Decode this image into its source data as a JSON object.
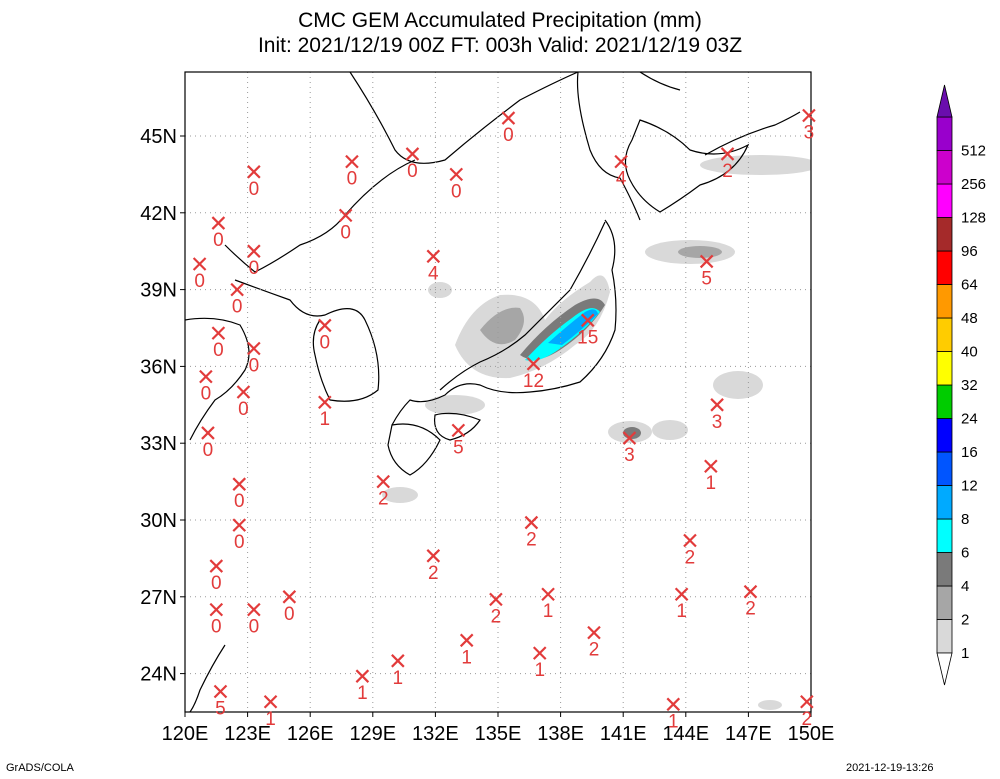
{
  "title": {
    "line1": "CMC GEM Accumulated Precipitation (mm)",
    "line2": "Init: 2021/12/19 00Z  FT: 003h  Valid: 2021/12/19 03Z"
  },
  "footer": {
    "left": "GrADS/COLA",
    "right": "2021-12-19-13:26"
  },
  "map": {
    "lon_range": [
      120,
      150
    ],
    "lat_range": [
      22.5,
      47.5
    ],
    "x_ticks": [
      120,
      123,
      126,
      129,
      132,
      135,
      138,
      141,
      144,
      147,
      150
    ],
    "x_tick_labels": [
      "120E",
      "123E",
      "126E",
      "129E",
      "132E",
      "135E",
      "138E",
      "141E",
      "144E",
      "147E",
      "150E"
    ],
    "y_ticks": [
      24,
      27,
      30,
      33,
      36,
      39,
      42,
      45
    ],
    "y_tick_labels": [
      "24N",
      "27N",
      "30N",
      "33N",
      "36N",
      "39N",
      "42N",
      "45N"
    ],
    "grid": true,
    "marker_color": "#e23b3b"
  },
  "legend": {
    "levels": [
      {
        "label": "1",
        "color": "#d9d9d9"
      },
      {
        "label": "2",
        "color": "#a6a6a6"
      },
      {
        "label": "4",
        "color": "#7a7a7a"
      },
      {
        "label": "6",
        "color": "#00ffff"
      },
      {
        "label": "8",
        "color": "#00aaff"
      },
      {
        "label": "12",
        "color": "#0055ff"
      },
      {
        "label": "16",
        "color": "#0000ff"
      },
      {
        "label": "24",
        "color": "#00cc00"
      },
      {
        "label": "32",
        "color": "#ffff00"
      },
      {
        "label": "40",
        "color": "#ffcc00"
      },
      {
        "label": "48",
        "color": "#ff9900"
      },
      {
        "label": "64",
        "color": "#ff0000"
      },
      {
        "label": "96",
        "color": "#a52a2a"
      },
      {
        "label": "128",
        "color": "#ff00ff"
      },
      {
        "label": "256",
        "color": "#cc00cc"
      },
      {
        "label": "512",
        "color": "#9900cc"
      }
    ],
    "top_arrow_color": "#6a0dad",
    "bottom_arrow_color": "#ffffff"
  },
  "stations": [
    {
      "lon": 135.5,
      "lat": 45.7,
      "value": "0"
    },
    {
      "lon": 128.0,
      "lat": 44.0,
      "value": "0"
    },
    {
      "lon": 130.9,
      "lat": 44.3,
      "value": "0"
    },
    {
      "lon": 133.0,
      "lat": 43.5,
      "value": "0"
    },
    {
      "lon": 123.3,
      "lat": 43.6,
      "value": "0"
    },
    {
      "lon": 127.7,
      "lat": 41.9,
      "value": "0"
    },
    {
      "lon": 121.6,
      "lat": 41.6,
      "value": "0"
    },
    {
      "lon": 123.3,
      "lat": 40.5,
      "value": "0"
    },
    {
      "lon": 120.7,
      "lat": 40.0,
      "value": "0"
    },
    {
      "lon": 122.5,
      "lat": 39.0,
      "value": "0"
    },
    {
      "lon": 121.6,
      "lat": 37.3,
      "value": "0"
    },
    {
      "lon": 123.3,
      "lat": 36.7,
      "value": "0"
    },
    {
      "lon": 121.0,
      "lat": 35.6,
      "value": "0"
    },
    {
      "lon": 122.8,
      "lat": 35.0,
      "value": "0"
    },
    {
      "lon": 121.1,
      "lat": 33.4,
      "value": "0"
    },
    {
      "lon": 122.6,
      "lat": 31.4,
      "value": "0"
    },
    {
      "lon": 122.6,
      "lat": 29.8,
      "value": "0"
    },
    {
      "lon": 121.5,
      "lat": 28.2,
      "value": "0"
    },
    {
      "lon": 121.5,
      "lat": 26.5,
      "value": "0"
    },
    {
      "lon": 123.3,
      "lat": 26.5,
      "value": "0"
    },
    {
      "lon": 125.0,
      "lat": 27.0,
      "value": "0"
    },
    {
      "lon": 126.7,
      "lat": 37.6,
      "value": "0"
    },
    {
      "lon": 126.7,
      "lat": 34.6,
      "value": "1"
    },
    {
      "lon": 131.9,
      "lat": 40.3,
      "value": "4"
    },
    {
      "lon": 140.9,
      "lat": 44.0,
      "value": "4"
    },
    {
      "lon": 146.0,
      "lat": 44.3,
      "value": "2"
    },
    {
      "lon": 149.9,
      "lat": 45.8,
      "value": "3"
    },
    {
      "lon": 145.0,
      "lat": 40.1,
      "value": "5"
    },
    {
      "lon": 139.3,
      "lat": 37.8,
      "value": "15"
    },
    {
      "lon": 136.7,
      "lat": 36.1,
      "value": "12"
    },
    {
      "lon": 133.1,
      "lat": 33.5,
      "value": "5"
    },
    {
      "lon": 141.3,
      "lat": 33.2,
      "value": "3"
    },
    {
      "lon": 145.5,
      "lat": 34.5,
      "value": "3"
    },
    {
      "lon": 145.2,
      "lat": 32.1,
      "value": "1"
    },
    {
      "lon": 129.5,
      "lat": 31.5,
      "value": "2"
    },
    {
      "lon": 136.6,
      "lat": 29.9,
      "value": "2"
    },
    {
      "lon": 144.2,
      "lat": 29.2,
      "value": "2"
    },
    {
      "lon": 131.9,
      "lat": 28.6,
      "value": "2"
    },
    {
      "lon": 134.9,
      "lat": 26.9,
      "value": "2"
    },
    {
      "lon": 137.4,
      "lat": 27.1,
      "value": "1"
    },
    {
      "lon": 143.8,
      "lat": 27.1,
      "value": "1"
    },
    {
      "lon": 147.1,
      "lat": 27.2,
      "value": "2"
    },
    {
      "lon": 139.6,
      "lat": 25.6,
      "value": "2"
    },
    {
      "lon": 133.5,
      "lat": 25.3,
      "value": "1"
    },
    {
      "lon": 137.0,
      "lat": 24.8,
      "value": "1"
    },
    {
      "lon": 130.2,
      "lat": 24.5,
      "value": "1"
    },
    {
      "lon": 128.5,
      "lat": 23.9,
      "value": "1"
    },
    {
      "lon": 124.1,
      "lat": 22.9,
      "value": "1"
    },
    {
      "lon": 121.7,
      "lat": 23.3,
      "value": "5"
    },
    {
      "lon": 143.4,
      "lat": 22.8,
      "value": "1"
    },
    {
      "lon": 149.8,
      "lat": 22.9,
      "value": "2"
    }
  ]
}
